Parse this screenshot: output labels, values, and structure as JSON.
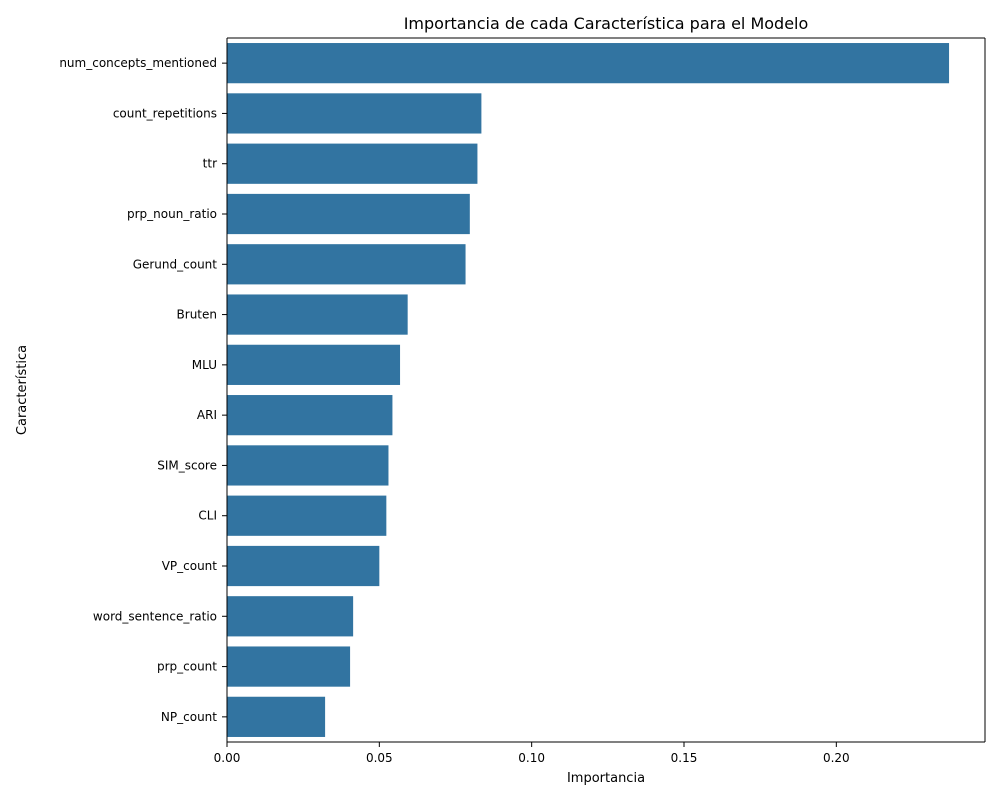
{
  "chart_data": {
    "type": "bar",
    "orientation": "horizontal",
    "title": "Importancia de cada Característica para el Modelo",
    "xlabel": "Importancia",
    "ylabel": "Característica",
    "categories": [
      "num_concepts_mentioned",
      "count_repetitions",
      "ttr",
      "prp_noun_ratio",
      "Gerund_count",
      "Bruten",
      "MLU",
      "ARI",
      "SIM_score",
      "CLI",
      "VP_count",
      "word_sentence_ratio",
      "prp_count",
      "NP_count"
    ],
    "values": [
      0.237,
      0.0835,
      0.0822,
      0.0797,
      0.0783,
      0.0593,
      0.0568,
      0.0543,
      0.053,
      0.0523,
      0.05,
      0.0414,
      0.0404,
      0.0322
    ],
    "xlim": [
      0,
      0.2488
    ],
    "xticks": [
      0.0,
      0.05,
      0.1,
      0.15,
      0.2
    ],
    "xtick_labels": [
      "0.00",
      "0.05",
      "0.10",
      "0.15",
      "0.20"
    ],
    "bar_color": "#3274a1",
    "grid": false
  }
}
